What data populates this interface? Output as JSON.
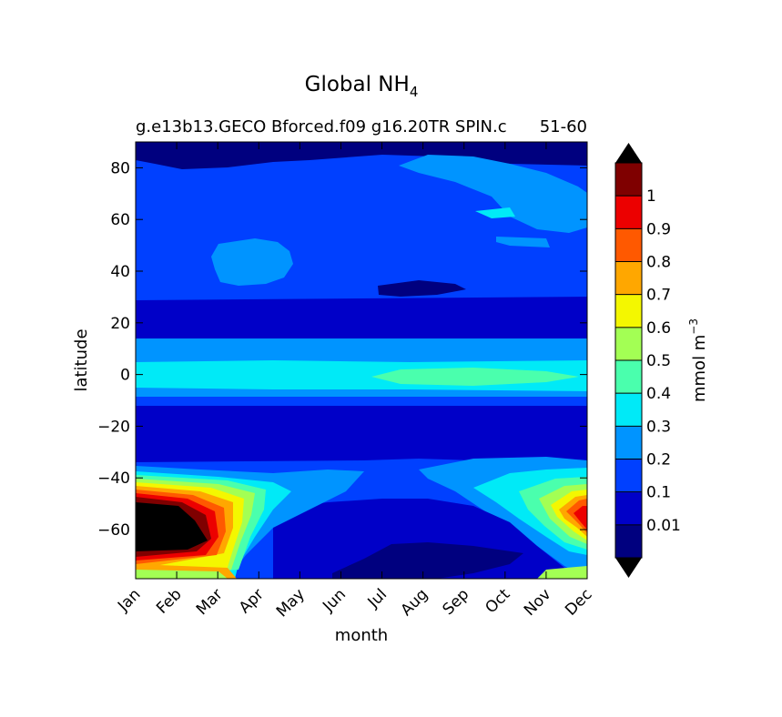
{
  "chart_data": {
    "type": "heatmap",
    "title": "Global NH",
    "title_subscript": "4",
    "subtitle_left": "g.e13b13.GECO Bforced.f09 g16.20TR SPIN.c",
    "subtitle_right": "51-60",
    "xlabel": "month",
    "ylabel": "latitude",
    "x_tick_labels": [
      "Jan",
      "Feb",
      "Mar",
      "Apr",
      "May",
      "Jun",
      "Jul",
      "Aug",
      "Sep",
      "Oct",
      "Nov",
      "Dec"
    ],
    "y_ticks": [
      80,
      60,
      40,
      20,
      0,
      -20,
      -40,
      -60
    ],
    "y_tick_labels": [
      "80",
      "60",
      "40",
      "20",
      "0",
      "−20",
      "−40",
      "−60"
    ],
    "xlim": [
      0,
      11
    ],
    "ylim": [
      -79,
      90
    ],
    "colorbar": {
      "label": "mmol m",
      "label_superscript": "−3",
      "levels": [
        0.01,
        0.1,
        0.2,
        0.3,
        0.4,
        0.5,
        0.6,
        0.7,
        0.8,
        0.9,
        1
      ],
      "tick_labels": [
        "0.01",
        "0.1",
        "0.2",
        "0.3",
        "0.4",
        "0.5",
        "0.6",
        "0.7",
        "0.8",
        "0.9",
        "1"
      ],
      "colors": [
        "#00007f",
        "#0000c8",
        "#0040ff",
        "#0094ff",
        "#00eaf7",
        "#4affad",
        "#a3ff54",
        "#f4f700",
        "#ffa700",
        "#ff5900",
        "#ec0000",
        "#7f0000"
      ],
      "extend_colors": {
        "under": "#000000",
        "over": "#000000"
      }
    },
    "regions": [
      {
        "level": "0.1-0.2",
        "color": "#0040ff"
      },
      {
        "level": "0.01-0.1",
        "color": "#0000c8"
      },
      {
        "level": "<0.01",
        "color": "#00007f"
      },
      {
        "level": "0.2-0.3",
        "color": "#0094ff"
      },
      {
        "level": "0.3-0.4",
        "color": "#00eaf7"
      },
      {
        "level": "0.4-0.5",
        "color": "#4affad"
      },
      {
        "level": "0.5-0.6",
        "color": "#a3ff54"
      },
      {
        "level": "0.6-0.7",
        "color": "#f4f700"
      },
      {
        "level": "0.7-0.8",
        "color": "#ffa700"
      },
      {
        "level": "0.8-0.9",
        "color": "#ff5900"
      },
      {
        "level": "0.9-1",
        "color": "#ec0000"
      },
      {
        "level": ">1",
        "color": "#000000"
      }
    ]
  }
}
